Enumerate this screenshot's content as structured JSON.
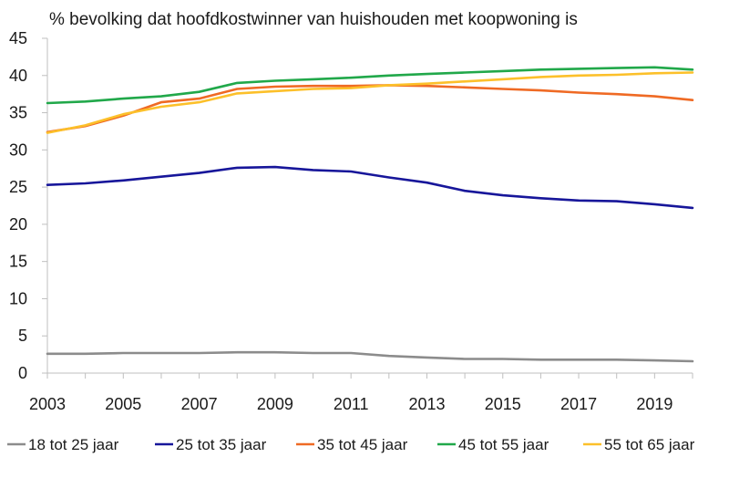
{
  "chart_data": {
    "type": "line",
    "title": "% bevolking dat hoofdkostwinner van huishouden met koopwoning is",
    "xlabel": "",
    "ylabel": "",
    "x": [
      2003,
      2004,
      2005,
      2006,
      2007,
      2008,
      2009,
      2010,
      2011,
      2012,
      2013,
      2014,
      2015,
      2016,
      2017,
      2018,
      2019,
      2020
    ],
    "xlim": [
      2003,
      2020
    ],
    "ylim": [
      0,
      45
    ],
    "yticks": [
      "0",
      "5",
      "10",
      "15",
      "20",
      "25",
      "30",
      "35",
      "40",
      "45"
    ],
    "xticks": [
      "2003",
      "2005",
      "2007",
      "2009",
      "2011",
      "2013",
      "2015",
      "2017",
      "2019"
    ],
    "grid": false,
    "legend_position": "bottom",
    "series": [
      {
        "name": "18 tot 25 jaar",
        "color": "#8c8c8c",
        "values": [
          2.6,
          2.6,
          2.7,
          2.7,
          2.7,
          2.8,
          2.8,
          2.7,
          2.7,
          2.3,
          2.1,
          1.9,
          1.9,
          1.8,
          1.8,
          1.8,
          1.7,
          1.6
        ]
      },
      {
        "name": "25 tot 35 jaar",
        "color": "#17169a",
        "values": [
          25.3,
          25.5,
          25.9,
          26.4,
          26.9,
          27.6,
          27.7,
          27.3,
          27.1,
          26.3,
          25.6,
          24.5,
          23.9,
          23.5,
          23.2,
          23.1,
          22.7,
          22.2
        ]
      },
      {
        "name": "35 tot 45 jaar",
        "color": "#ef6a24",
        "values": [
          32.4,
          33.2,
          34.6,
          36.4,
          36.9,
          38.2,
          38.5,
          38.6,
          38.6,
          38.7,
          38.6,
          38.4,
          38.2,
          38.0,
          37.7,
          37.5,
          37.2,
          36.7
        ]
      },
      {
        "name": "45 tot 55 jaar",
        "color": "#21a84a",
        "values": [
          36.3,
          36.5,
          36.9,
          37.2,
          37.8,
          39.0,
          39.3,
          39.5,
          39.7,
          40.0,
          40.2,
          40.4,
          40.6,
          40.8,
          40.9,
          41.0,
          41.1,
          40.8
        ]
      },
      {
        "name": "55 tot 65 jaar",
        "color": "#fcc02a",
        "values": [
          32.3,
          33.3,
          34.8,
          35.8,
          36.4,
          37.6,
          37.9,
          38.2,
          38.3,
          38.7,
          38.9,
          39.2,
          39.5,
          39.8,
          40.0,
          40.1,
          40.3,
          40.4
        ]
      }
    ]
  }
}
